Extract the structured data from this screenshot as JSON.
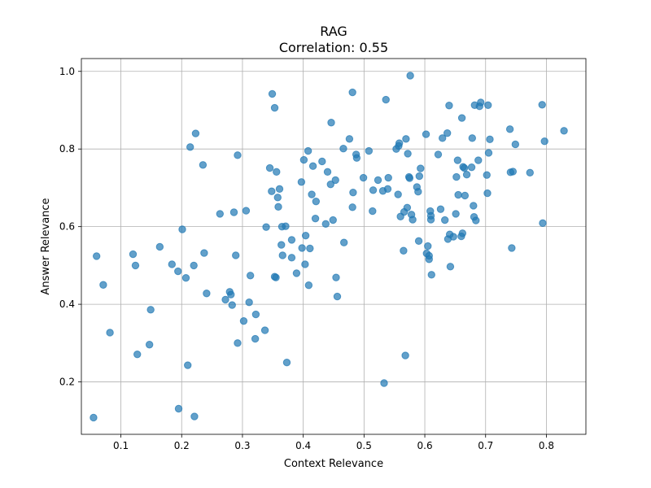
{
  "chart_data": {
    "type": "scatter",
    "title": "RAG",
    "subtitle": "Correlation: 0.55",
    "xlabel": "Context Relevance",
    "ylabel": "Answer Relevance",
    "xlim": [
      0.035,
      0.865
    ],
    "ylim": [
      0.065,
      1.033
    ],
    "xticks": [
      0.1,
      0.2,
      0.3,
      0.4,
      0.5,
      0.6,
      0.7,
      0.8
    ],
    "yticks": [
      0.2,
      0.4,
      0.6,
      0.8,
      1.0
    ],
    "xtick_labels": [
      "0.1",
      "0.2",
      "0.3",
      "0.4",
      "0.5",
      "0.6",
      "0.7",
      "0.8"
    ],
    "ytick_labels": [
      "0.2",
      "0.4",
      "0.6",
      "0.8",
      "1.0"
    ],
    "grid": true,
    "color": "#1f77b4",
    "alpha": 0.7,
    "series": [
      {
        "points": [
          [
            0.055,
            0.108
          ],
          [
            0.06,
            0.524
          ],
          [
            0.071,
            0.45
          ],
          [
            0.082,
            0.327
          ],
          [
            0.12,
            0.529
          ],
          [
            0.124,
            0.5
          ],
          [
            0.127,
            0.271
          ],
          [
            0.147,
            0.296
          ],
          [
            0.149,
            0.386
          ],
          [
            0.164,
            0.548
          ],
          [
            0.184,
            0.503
          ],
          [
            0.194,
            0.485
          ],
          [
            0.195,
            0.131
          ],
          [
            0.201,
            0.593
          ],
          [
            0.207,
            0.468
          ],
          [
            0.21,
            0.243
          ],
          [
            0.214,
            0.805
          ],
          [
            0.22,
            0.5
          ],
          [
            0.221,
            0.111
          ],
          [
            0.223,
            0.84
          ],
          [
            0.235,
            0.759
          ],
          [
            0.237,
            0.532
          ],
          [
            0.241,
            0.428
          ],
          [
            0.263,
            0.633
          ],
          [
            0.272,
            0.412
          ],
          [
            0.279,
            0.432
          ],
          [
            0.281,
            0.425
          ],
          [
            0.283,
            0.398
          ],
          [
            0.286,
            0.637
          ],
          [
            0.289,
            0.526
          ],
          [
            0.292,
            0.784
          ],
          [
            0.292,
            0.3
          ],
          [
            0.302,
            0.357
          ],
          [
            0.306,
            0.641
          ],
          [
            0.311,
            0.405
          ],
          [
            0.313,
            0.474
          ],
          [
            0.321,
            0.311
          ],
          [
            0.322,
            0.374
          ],
          [
            0.337,
            0.333
          ],
          [
            0.339,
            0.599
          ],
          [
            0.345,
            0.751
          ],
          [
            0.348,
            0.691
          ],
          [
            0.349,
            0.942
          ],
          [
            0.353,
            0.906
          ],
          [
            0.353,
            0.471
          ],
          [
            0.355,
            0.469
          ],
          [
            0.356,
            0.741
          ],
          [
            0.358,
            0.675
          ],
          [
            0.359,
            0.651
          ],
          [
            0.361,
            0.697
          ],
          [
            0.364,
            0.553
          ],
          [
            0.365,
            0.6
          ],
          [
            0.366,
            0.526
          ],
          [
            0.371,
            0.601
          ],
          [
            0.373,
            0.25
          ],
          [
            0.381,
            0.566
          ],
          [
            0.381,
            0.52
          ],
          [
            0.389,
            0.48
          ],
          [
            0.397,
            0.715
          ],
          [
            0.398,
            0.545
          ],
          [
            0.401,
            0.772
          ],
          [
            0.403,
            0.503
          ],
          [
            0.404,
            0.577
          ],
          [
            0.408,
            0.795
          ],
          [
            0.409,
            0.449
          ],
          [
            0.411,
            0.544
          ],
          [
            0.414,
            0.683
          ],
          [
            0.416,
            0.756
          ],
          [
            0.42,
            0.621
          ],
          [
            0.421,
            0.665
          ],
          [
            0.431,
            0.768
          ],
          [
            0.437,
            0.607
          ],
          [
            0.44,
            0.741
          ],
          [
            0.445,
            0.709
          ],
          [
            0.446,
            0.868
          ],
          [
            0.449,
            0.617
          ],
          [
            0.453,
            0.72
          ],
          [
            0.454,
            0.469
          ],
          [
            0.456,
            0.42
          ],
          [
            0.467,
            0.559
          ],
          [
            0.466,
            0.801
          ],
          [
            0.476,
            0.826
          ],
          [
            0.481,
            0.946
          ],
          [
            0.481,
            0.65
          ],
          [
            0.482,
            0.688
          ],
          [
            0.487,
            0.786
          ],
          [
            0.488,
            0.777
          ],
          [
            0.499,
            0.726
          ],
          [
            0.508,
            0.795
          ],
          [
            0.514,
            0.64
          ],
          [
            0.515,
            0.694
          ],
          [
            0.523,
            0.72
          ],
          [
            0.531,
            0.692
          ],
          [
            0.533,
            0.197
          ],
          [
            0.536,
            0.927
          ],
          [
            0.539,
            0.697
          ],
          [
            0.54,
            0.726
          ],
          [
            0.553,
            0.8
          ],
          [
            0.556,
            0.683
          ],
          [
            0.557,
            0.808
          ],
          [
            0.558,
            0.815
          ],
          [
            0.56,
            0.626
          ],
          [
            0.565,
            0.538
          ],
          [
            0.566,
            0.638
          ],
          [
            0.568,
            0.268
          ],
          [
            0.569,
            0.826
          ],
          [
            0.571,
            0.649
          ],
          [
            0.572,
            0.788
          ],
          [
            0.574,
            0.728
          ],
          [
            0.575,
            0.725
          ],
          [
            0.576,
            0.989
          ],
          [
            0.578,
            0.631
          ],
          [
            0.58,
            0.618
          ],
          [
            0.587,
            0.702
          ],
          [
            0.589,
            0.69
          ],
          [
            0.59,
            0.563
          ],
          [
            0.591,
            0.73
          ],
          [
            0.593,
            0.75
          ],
          [
            0.602,
            0.838
          ],
          [
            0.603,
            0.531
          ],
          [
            0.605,
            0.55
          ],
          [
            0.607,
            0.516
          ],
          [
            0.607,
            0.525
          ],
          [
            0.609,
            0.64
          ],
          [
            0.61,
            0.628
          ],
          [
            0.61,
            0.618
          ],
          [
            0.611,
            0.476
          ],
          [
            0.622,
            0.786
          ],
          [
            0.626,
            0.645
          ],
          [
            0.629,
            0.828
          ],
          [
            0.633,
            0.617
          ],
          [
            0.637,
            0.841
          ],
          [
            0.638,
            0.568
          ],
          [
            0.64,
            0.912
          ],
          [
            0.641,
            0.58
          ],
          [
            0.642,
            0.497
          ],
          [
            0.647,
            0.574
          ],
          [
            0.651,
            0.633
          ],
          [
            0.652,
            0.728
          ],
          [
            0.654,
            0.771
          ],
          [
            0.655,
            0.682
          ],
          [
            0.66,
            0.575
          ],
          [
            0.661,
            0.88
          ],
          [
            0.662,
            0.583
          ],
          [
            0.663,
            0.754
          ],
          [
            0.665,
            0.751
          ],
          [
            0.666,
            0.68
          ],
          [
            0.669,
            0.734
          ],
          [
            0.677,
            0.753
          ],
          [
            0.678,
            0.828
          ],
          [
            0.68,
            0.654
          ],
          [
            0.681,
            0.625
          ],
          [
            0.682,
            0.913
          ],
          [
            0.684,
            0.616
          ],
          [
            0.688,
            0.771
          ],
          [
            0.69,
            0.91
          ],
          [
            0.692,
            0.92
          ],
          [
            0.702,
            0.733
          ],
          [
            0.703,
            0.686
          ],
          [
            0.704,
            0.913
          ],
          [
            0.705,
            0.79
          ],
          [
            0.707,
            0.825
          ],
          [
            0.74,
            0.851
          ],
          [
            0.741,
            0.74
          ],
          [
            0.743,
            0.545
          ],
          [
            0.745,
            0.742
          ],
          [
            0.749,
            0.812
          ],
          [
            0.773,
            0.739
          ],
          [
            0.793,
            0.914
          ],
          [
            0.794,
            0.609
          ],
          [
            0.797,
            0.82
          ],
          [
            0.829,
            0.847
          ]
        ]
      }
    ]
  }
}
